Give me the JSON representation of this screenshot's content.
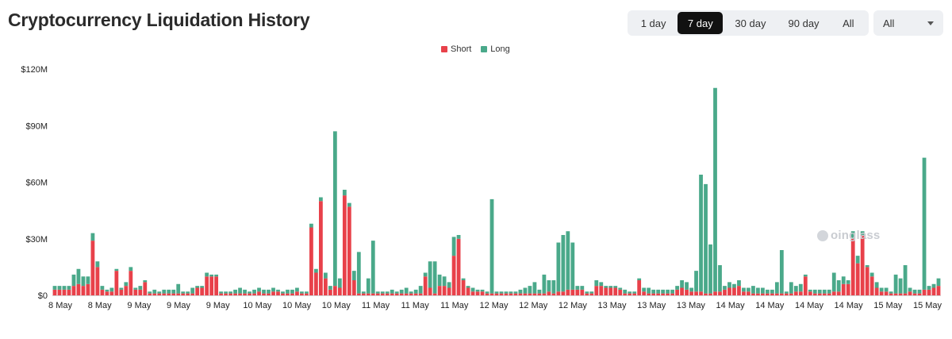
{
  "header": {
    "title": "Cryptocurrency Liquidation History"
  },
  "range": {
    "options": [
      {
        "label": "1 day",
        "active": false
      },
      {
        "label": "7 day",
        "active": true
      },
      {
        "label": "30 day",
        "active": false
      },
      {
        "label": "90 day",
        "active": false
      },
      {
        "label": "All",
        "active": false
      }
    ]
  },
  "coin_select": {
    "value": "All"
  },
  "watermark": {
    "text": "oinglass",
    "icon": "coinglass-logo-icon"
  },
  "colors": {
    "short": "#e8414a",
    "long": "#4aa98a"
  },
  "chart_data": {
    "type": "bar",
    "stacked": true,
    "y_unit": "USD millions",
    "ylim": [
      0,
      120
    ],
    "y_ticks": [
      "$0",
      "$30M",
      "$60M",
      "$90M",
      "$120M"
    ],
    "x_tick_labels": [
      "8 May",
      "8 May",
      "9 May",
      "9 May",
      "9 May",
      "10 May",
      "10 May",
      "10 May",
      "11 May",
      "11 May",
      "11 May",
      "12 May",
      "12 May",
      "12 May",
      "13 May",
      "13 May",
      "13 May",
      "14 May",
      "14 May",
      "14 May",
      "14 May",
      "15 May",
      "15 May"
    ],
    "legend": [
      {
        "name": "Short",
        "color": "#e8414a"
      },
      {
        "name": "Long",
        "color": "#4aa98a"
      }
    ],
    "series": [
      {
        "name": "Short",
        "values": [
          3,
          3,
          3,
          3,
          5,
          6,
          5,
          6,
          29,
          15,
          3,
          2,
          2,
          13,
          3,
          5,
          13,
          3,
          3,
          7,
          1,
          1,
          1,
          1,
          1,
          1,
          1,
          1,
          1,
          1,
          4,
          4,
          10,
          10,
          10,
          1,
          1,
          1,
          1,
          1,
          1,
          1,
          1,
          2,
          1,
          1,
          2,
          2,
          1,
          1,
          1,
          2,
          1,
          1,
          36,
          12,
          50,
          9,
          3,
          5,
          4,
          53,
          47,
          8,
          1,
          1,
          1,
          1,
          1,
          1,
          1,
          1,
          1,
          1,
          1,
          1,
          1,
          1,
          10,
          4,
          1,
          5,
          5,
          4,
          21,
          30,
          8,
          4,
          2,
          2,
          2,
          1,
          1,
          1,
          1,
          1,
          1,
          1,
          1,
          1,
          1,
          1,
          1,
          1,
          2,
          1,
          2,
          2,
          3,
          3,
          3,
          3,
          1,
          1,
          5,
          5,
          4,
          4,
          4,
          3,
          1,
          1,
          1,
          8,
          2,
          1,
          1,
          1,
          1,
          1,
          1,
          3,
          4,
          3,
          2,
          2,
          2,
          1,
          1,
          2,
          2,
          3,
          4,
          4,
          5,
          2,
          2,
          1,
          1,
          1,
          1,
          1,
          1,
          1,
          1,
          1,
          2,
          2,
          10,
          2,
          1,
          1,
          1,
          1,
          2,
          2,
          6,
          6,
          30,
          17,
          32,
          15,
          10,
          4,
          2,
          2,
          1,
          1,
          1,
          1,
          2,
          1,
          1,
          3,
          3,
          4,
          5
        ]
      },
      {
        "name": "Long",
        "values": [
          2,
          2,
          2,
          2,
          6,
          8,
          5,
          4,
          4,
          3,
          2,
          1,
          2,
          1,
          1,
          2,
          2,
          1,
          2,
          1,
          1,
          2,
          1,
          2,
          2,
          2,
          5,
          1,
          1,
          3,
          1,
          1,
          2,
          1,
          1,
          1,
          1,
          1,
          2,
          3,
          2,
          1,
          2,
          2,
          2,
          2,
          2,
          1,
          1,
          2,
          2,
          2,
          1,
          1,
          2,
          2,
          2,
          3,
          2,
          82,
          5,
          3,
          2,
          5,
          22,
          1,
          8,
          28,
          1,
          1,
          1,
          2,
          1,
          2,
          3,
          1,
          2,
          4,
          2,
          14,
          17,
          6,
          5,
          3,
          10,
          2,
          1,
          1,
          2,
          1,
          1,
          1,
          50,
          1,
          1,
          1,
          1,
          1,
          2,
          3,
          4,
          6,
          2,
          10,
          6,
          7,
          26,
          30,
          31,
          25,
          2,
          2,
          1,
          1,
          3,
          2,
          1,
          1,
          1,
          1,
          2,
          1,
          1,
          1,
          2,
          3,
          2,
          2,
          2,
          2,
          2,
          2,
          4,
          4,
          2,
          11,
          62,
          58,
          26,
          108,
          14,
          2,
          3,
          2,
          3,
          2,
          2,
          4,
          3,
          3,
          2,
          2,
          6,
          23,
          1,
          6,
          3,
          4,
          1,
          1,
          2,
          2,
          2,
          2,
          10,
          6,
          4,
          2,
          4,
          4,
          2,
          1,
          2,
          3,
          2,
          2,
          1,
          10,
          8,
          15,
          2,
          2,
          2,
          70,
          2,
          2,
          4
        ]
      }
    ]
  }
}
